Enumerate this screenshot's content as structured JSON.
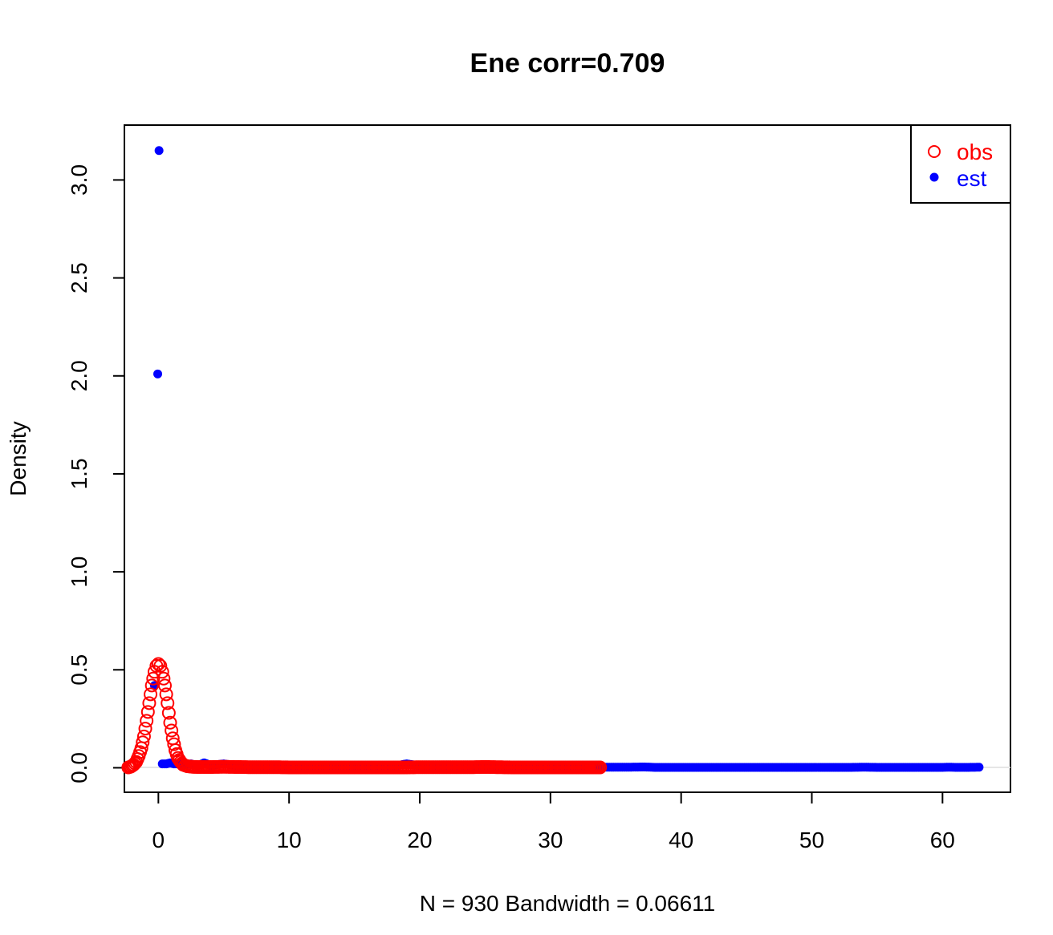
{
  "chart_data": {
    "type": "scatter",
    "title": "Ene corr=0.709",
    "xlabel": "N = 930   Bandwidth = 0.06611",
    "ylabel": "Density",
    "xlim": [
      -2.6,
      65.2
    ],
    "ylim": [
      -0.125,
      3.28
    ],
    "x_ticks": [
      0,
      10,
      20,
      30,
      40,
      50,
      60
    ],
    "y_ticks": [
      0.0,
      0.5,
      1.0,
      1.5,
      2.0,
      2.5,
      3.0
    ],
    "x_tick_labels": [
      "0",
      "10",
      "20",
      "30",
      "40",
      "50",
      "60"
    ],
    "y_tick_labels": [
      "0.0",
      "0.5",
      "1.0",
      "1.5",
      "2.0",
      "2.5",
      "3.0"
    ],
    "grid": false,
    "legend_position": "top-right",
    "legend": [
      {
        "label": "obs",
        "color": "#ff0000",
        "marker": "open-circle"
      },
      {
        "label": "est",
        "color": "#0000ff",
        "marker": "filled-circle"
      }
    ],
    "series": [
      {
        "name": "obs",
        "color": "#ff0000",
        "marker": "open-circle",
        "x": [
          -2.3,
          -2.1,
          -1.9,
          -1.7,
          -1.5,
          -1.3,
          -1.1,
          -0.9,
          -0.7,
          -0.5,
          -0.3,
          -0.15,
          0.0,
          0.15,
          0.3,
          0.5,
          0.7,
          0.9,
          1.1,
          1.3,
          1.5,
          1.7,
          1.9,
          2.2,
          2.6,
          3.0,
          4,
          5,
          6,
          7,
          8,
          9,
          10,
          11,
          12,
          13,
          14,
          15,
          16,
          17,
          18,
          19,
          20,
          21,
          22,
          23,
          24,
          25,
          26,
          27,
          28,
          29,
          30,
          31,
          32,
          33,
          33.8
        ],
        "y": [
          0.002,
          0.006,
          0.015,
          0.03,
          0.06,
          0.1,
          0.16,
          0.24,
          0.33,
          0.42,
          0.49,
          0.52,
          0.53,
          0.52,
          0.49,
          0.42,
          0.33,
          0.23,
          0.15,
          0.09,
          0.05,
          0.03,
          0.015,
          0.008,
          0.005,
          0.004,
          0.004,
          0.005,
          0.004,
          0.003,
          0.003,
          0.003,
          0.002,
          0.002,
          0.002,
          0.002,
          0.002,
          0.002,
          0.002,
          0.002,
          0.002,
          0.002,
          0.003,
          0.003,
          0.003,
          0.003,
          0.003,
          0.004,
          0.003,
          0.002,
          0.002,
          0.002,
          0.002,
          0.002,
          0.002,
          0.002,
          0.002
        ]
      },
      {
        "name": "est",
        "color": "#0000ff",
        "marker": "filled-circle",
        "x": [
          0.05,
          -0.05,
          -0.3,
          0.3,
          0.6,
          0.9,
          1.2,
          1.5,
          2.0,
          2.5,
          3.0,
          3.5,
          4.0,
          5.0,
          5.5,
          6.5,
          7.0,
          8.0,
          9.0,
          10.0,
          11.0,
          12.0,
          13.0,
          14.0,
          15.0,
          16.0,
          17.0,
          18.0,
          19.0,
          20.0,
          21.0,
          22.0,
          23.0,
          24.0,
          25.0,
          26.0,
          27.0,
          28.0,
          29.0,
          30.0,
          31.0,
          32.0,
          33.0,
          34.0,
          35.0,
          36.0,
          37.2,
          38.0,
          39.0,
          40.0,
          41.0,
          42.0,
          43.0,
          44.0,
          45.0,
          46.0,
          47.0,
          48.0,
          49.0,
          50.0,
          51.0,
          52.0,
          53.0,
          54.0,
          55.0,
          56.0,
          57.0,
          58.0,
          59.0,
          60.0,
          60.5,
          61.0,
          62.0,
          62.8
        ],
        "y": [
          3.15,
          2.01,
          0.42,
          0.02,
          0.02,
          0.025,
          0.02,
          0.02,
          0.015,
          0.02,
          0.01,
          0.025,
          0.012,
          0.02,
          0.015,
          0.01,
          0.012,
          0.01,
          0.012,
          0.01,
          0.008,
          0.01,
          0.008,
          0.009,
          0.01,
          0.007,
          0.006,
          0.008,
          0.02,
          0.01,
          0.005,
          0.006,
          0.005,
          0.005,
          0.005,
          0.004,
          0.004,
          0.004,
          0.003,
          0.004,
          0.003,
          0.003,
          0.003,
          0.003,
          0.003,
          0.003,
          0.004,
          0.002,
          0.002,
          0.002,
          0.002,
          0.002,
          0.002,
          0.002,
          0.002,
          0.002,
          0.002,
          0.002,
          0.002,
          0.002,
          0.002,
          0.002,
          0.002,
          0.003,
          0.002,
          0.002,
          0.002,
          0.002,
          0.002,
          0.002,
          0.003,
          0.002,
          0.002,
          0.003
        ]
      }
    ]
  }
}
